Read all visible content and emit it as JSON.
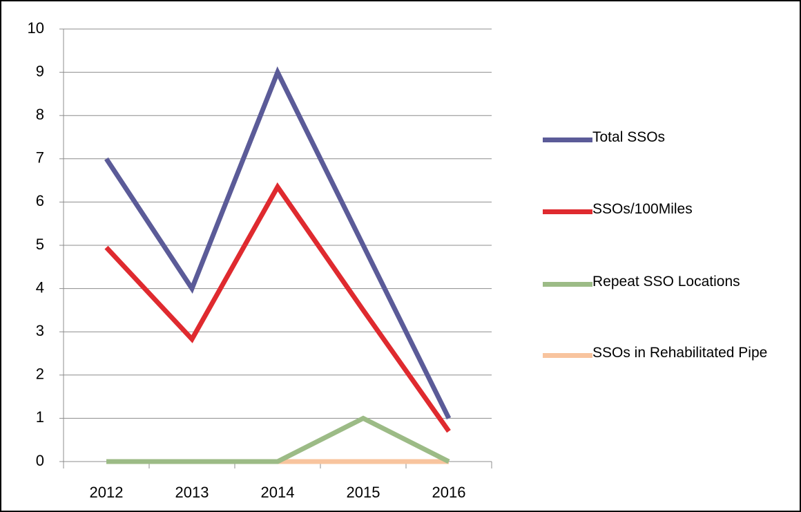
{
  "chart_data": {
    "type": "line",
    "categories": [
      "2012",
      "2013",
      "2014",
      "2015",
      "2016"
    ],
    "series": [
      {
        "name": "Total SSOs",
        "color": "#5b5b98",
        "values": [
          7,
          4,
          9,
          5,
          1
        ]
      },
      {
        "name": "SSOs/100Miles",
        "color": "#df2a2f",
        "values": [
          4.95,
          2.83,
          6.35,
          3.5,
          0.7
        ]
      },
      {
        "name": "Repeat SSO Locations",
        "color": "#9cbb86",
        "values": [
          0,
          0,
          0,
          1,
          0
        ]
      },
      {
        "name": "SSOs in Rehabilitated Pipe",
        "color": "#f8c49e",
        "values": [
          0,
          0,
          0,
          0,
          0
        ]
      }
    ],
    "ylim": [
      0,
      10
    ],
    "yticks": [
      0,
      1,
      2,
      3,
      4,
      5,
      6,
      7,
      8,
      9,
      10
    ],
    "grid": true,
    "legend": "right"
  }
}
